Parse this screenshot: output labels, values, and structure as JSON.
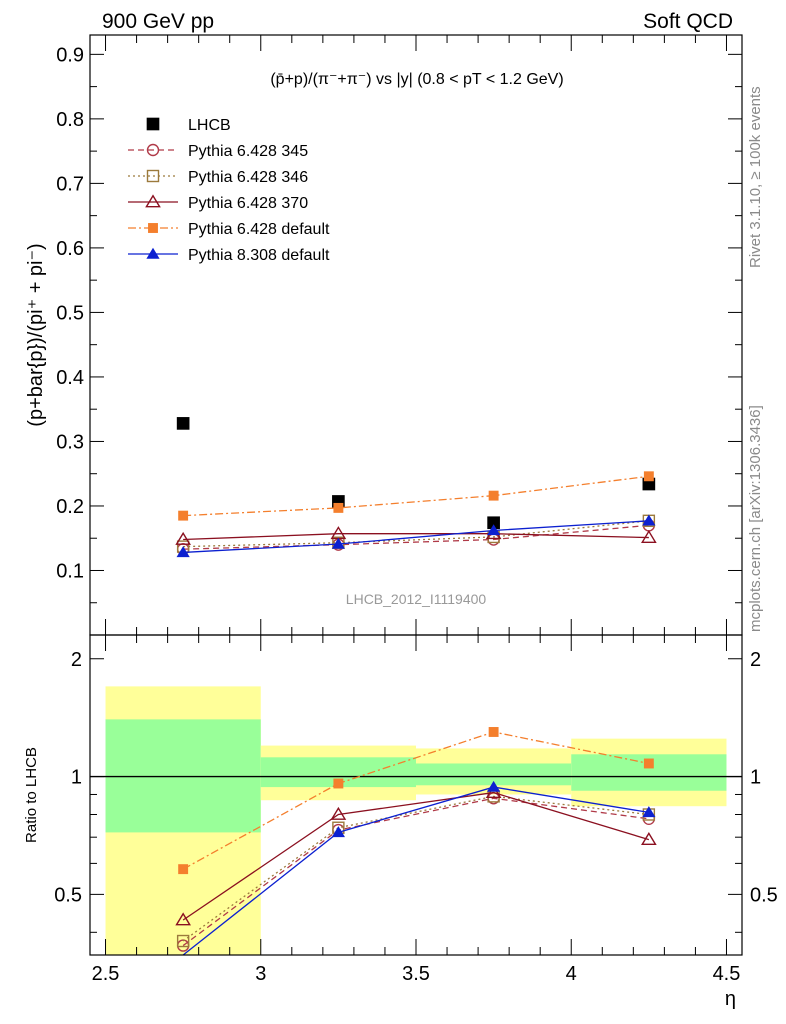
{
  "header": {
    "left": "900 GeV pp",
    "right": "Soft QCD"
  },
  "side_labels": {
    "rivet": "Rivet 3.1.10, ≥ 100k events",
    "mcplots": "mcplots.cern.ch [arXiv:1306.3436]"
  },
  "watermark": "LHCB_2012_I1119400",
  "chart_data": [
    {
      "type": "scatter",
      "panel": "main",
      "title": "(p̄+p)/(π⁻+π⁻) vs |y| (0.8 < pT < 1.2 GeV)",
      "ylabel": "(p+bar{p})/(pi⁺ + pi⁻)",
      "xlim": [
        2.45,
        4.55
      ],
      "ylim": [
        0,
        0.93
      ],
      "yticks": [
        "0.1",
        "0.2",
        "0.3",
        "0.4",
        "0.5",
        "0.6",
        "0.7",
        "0.8",
        "0.9"
      ],
      "x": [
        2.75,
        3.25,
        3.75,
        4.25
      ],
      "series": [
        {
          "name": "LHCB",
          "values": [
            0.328,
            0.207,
            0.174,
            0.234
          ],
          "color": "#000000",
          "marker": "square",
          "line": "none"
        },
        {
          "name": "Pythia 6.428 345",
          "values": [
            0.133,
            0.14,
            0.148,
            0.17
          ],
          "color": "#b03a48",
          "marker": "circle-open",
          "line": "dashed"
        },
        {
          "name": "Pythia 6.428 346",
          "values": [
            0.137,
            0.143,
            0.152,
            0.177
          ],
          "color": "#9c7a3c",
          "marker": "square-open",
          "line": "dotted"
        },
        {
          "name": "Pythia 6.428 370",
          "values": [
            0.148,
            0.157,
            0.157,
            0.151
          ],
          "color": "#8b1020",
          "marker": "triangle-open",
          "line": "solid"
        },
        {
          "name": "Pythia 6.428 default",
          "values": [
            0.185,
            0.197,
            0.216,
            0.246
          ],
          "color": "#f47f2d",
          "marker": "square-filled",
          "line": "dashdot"
        },
        {
          "name": "Pythia 8.308 default",
          "values": [
            0.128,
            0.141,
            0.162,
            0.177
          ],
          "color": "#0c20d0",
          "marker": "triangle-filled",
          "line": "solid"
        }
      ]
    },
    {
      "type": "line",
      "panel": "ratio",
      "ylabel": "Ratio to LHCB",
      "xlabel": "η",
      "xlim": [
        2.45,
        4.55
      ],
      "ylim": [
        0.35,
        2.3
      ],
      "yticks": [
        "0.5",
        "1",
        "2"
      ],
      "xticks": [
        "2.5",
        "3",
        "3.5",
        "4",
        "4.5"
      ],
      "bands": [
        {
          "x0": 2.5,
          "x1": 3.0,
          "yellow": [
            0.3,
            1.7
          ],
          "green": [
            0.72,
            1.4
          ]
        },
        {
          "x0": 3.0,
          "x1": 3.5,
          "yellow": [
            0.87,
            1.2
          ],
          "green": [
            0.94,
            1.12
          ]
        },
        {
          "x0": 3.5,
          "x1": 4.0,
          "yellow": [
            0.9,
            1.18
          ],
          "green": [
            0.95,
            1.08
          ]
        },
        {
          "x0": 4.0,
          "x1": 4.5,
          "yellow": [
            0.84,
            1.25
          ],
          "green": [
            0.92,
            1.14
          ]
        }
      ],
      "x": [
        2.75,
        3.25,
        3.75,
        4.25
      ],
      "series": [
        {
          "name": "Pythia 6.428 345",
          "values": [
            0.37,
            0.73,
            0.88,
            0.78
          ]
        },
        {
          "name": "Pythia 6.428 346",
          "values": [
            0.38,
            0.74,
            0.89,
            0.8
          ]
        },
        {
          "name": "Pythia 6.428 370",
          "values": [
            0.43,
            0.8,
            0.91,
            0.69
          ]
        },
        {
          "name": "Pythia 6.428 default",
          "values": [
            0.58,
            0.96,
            1.3,
            1.08
          ]
        },
        {
          "name": "Pythia 8.308 default",
          "values": [
            0.33,
            0.72,
            0.94,
            0.81
          ]
        }
      ]
    }
  ]
}
